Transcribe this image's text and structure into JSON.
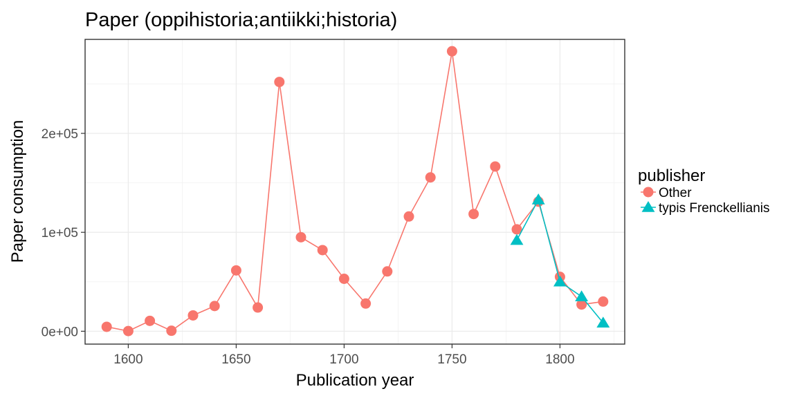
{
  "chart_data": {
    "type": "line",
    "title": "Paper (oppihistoria;antiikki;historia)",
    "xlabel": "Publication year",
    "ylabel": "Paper consumption",
    "xlim": [
      1580,
      1830
    ],
    "ylim": [
      -13000,
      295000
    ],
    "x_ticks": [
      {
        "value": 1600,
        "label": "1600"
      },
      {
        "value": 1650,
        "label": "1650"
      },
      {
        "value": 1700,
        "label": "1700"
      },
      {
        "value": 1750,
        "label": "1750"
      },
      {
        "value": 1800,
        "label": "1800"
      }
    ],
    "y_ticks": [
      {
        "value": 0,
        "label": "0e+00"
      },
      {
        "value": 100000,
        "label": "1e+05"
      },
      {
        "value": 200000,
        "label": "2e+05"
      }
    ],
    "grid": true,
    "legend": {
      "title": "publisher",
      "position": "right"
    },
    "series": [
      {
        "name": "Other",
        "color": "#F8766D",
        "marker": "circle",
        "x": [
          1590,
          1600,
          1610,
          1620,
          1630,
          1640,
          1650,
          1660,
          1670,
          1680,
          1690,
          1700,
          1710,
          1720,
          1730,
          1740,
          1750,
          1760,
          1770,
          1780,
          1790,
          1800,
          1810,
          1820
        ],
        "y": [
          4500,
          200,
          10500,
          500,
          16000,
          25500,
          61500,
          24000,
          252000,
          95000,
          82000,
          53000,
          28000,
          60500,
          116000,
          155500,
          283000,
          118500,
          166500,
          103000,
          131000,
          55000,
          27000,
          30000
        ]
      },
      {
        "name": "typis Frenckellianis",
        "color": "#00BFC4",
        "marker": "triangle",
        "x": [
          1780,
          1790,
          1800,
          1810,
          1820
        ],
        "y": [
          92000,
          133000,
          50000,
          35000,
          8500
        ]
      }
    ]
  }
}
